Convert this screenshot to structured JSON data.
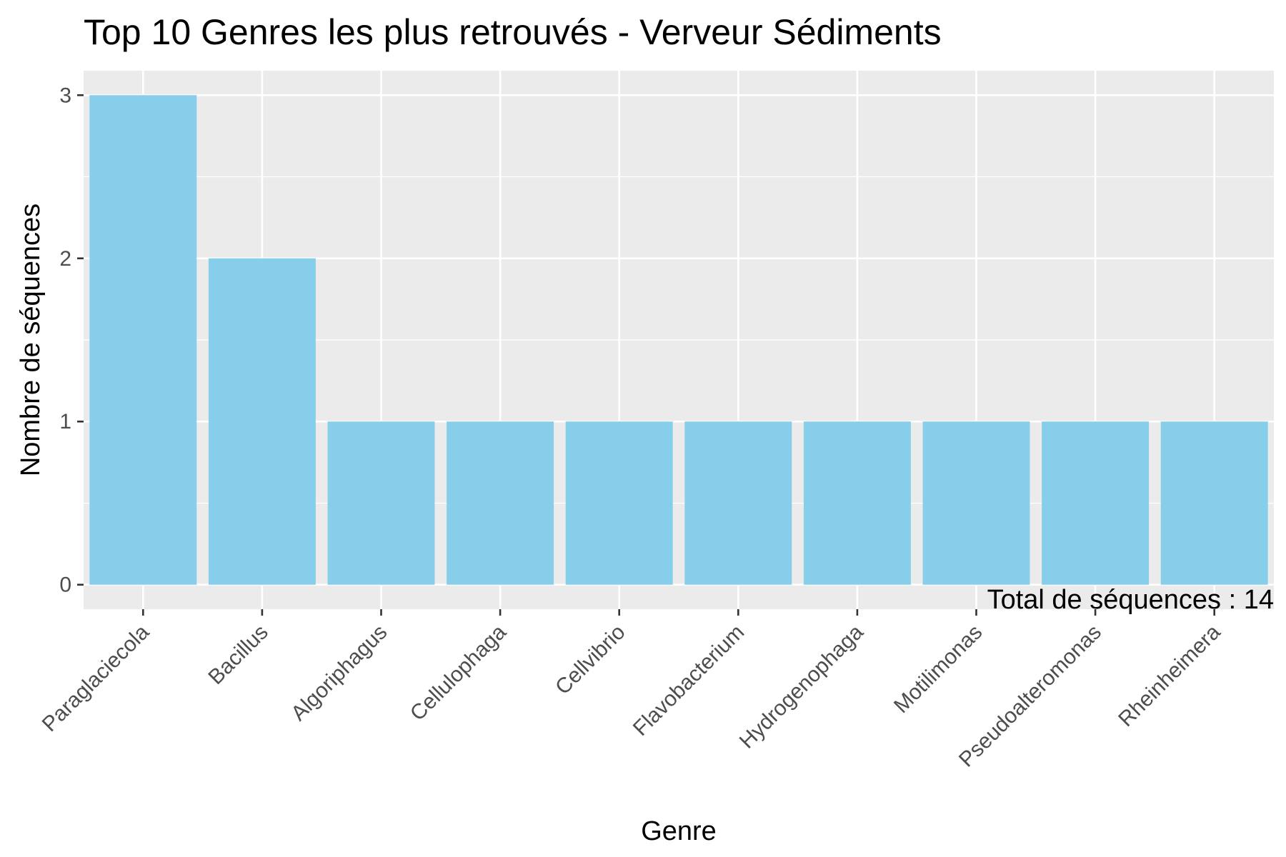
{
  "chart_data": {
    "type": "bar",
    "title": "Top 10 Genres les plus retrouvés - Verveur Sédiments",
    "xlabel": "Genre",
    "ylabel": "Nombre de séquences",
    "categories": [
      "Paraglaciecola",
      "Bacillus",
      "Algoriphagus",
      "Cellulophaga",
      "Cellvibrio",
      "Flavobacterium",
      "Hydrogenophaga",
      "Motilimonas",
      "Pseudoalteromonas",
      "Rheinheimera"
    ],
    "values": [
      3,
      2,
      1,
      1,
      1,
      1,
      1,
      1,
      1,
      1
    ],
    "ylim": [
      -0.15,
      3.15
    ],
    "yticks": [
      "0",
      "1",
      "2",
      "3"
    ],
    "grid": true,
    "legend": "none",
    "annotation": "Total de séquences : 14",
    "colors": {
      "bar": "#87ceeb",
      "panel": "#ebebeb",
      "grid": "#ffffff",
      "tick": "#333333"
    }
  }
}
